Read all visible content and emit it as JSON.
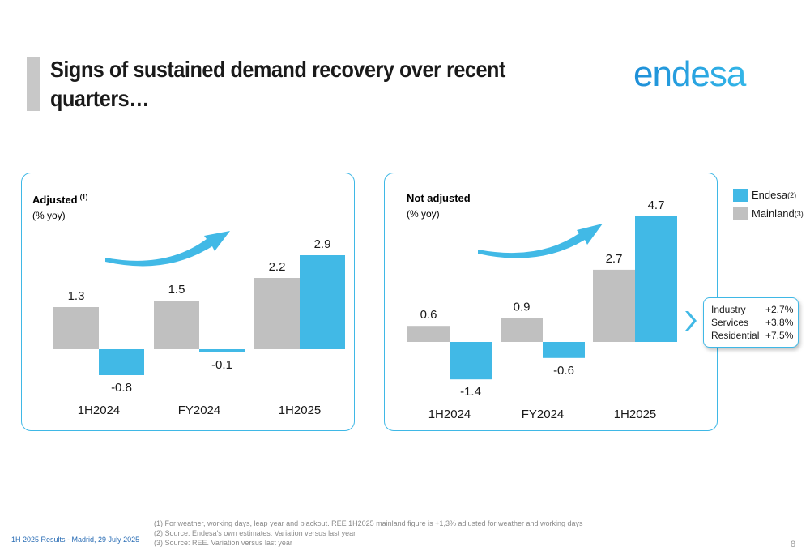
{
  "header": {
    "title_line1": "Signs of sustained demand recovery over recent",
    "title_line2": "quarters…",
    "logo_text": "endesa"
  },
  "colors": {
    "endesa": "#41b9e6",
    "mainland": "#c0c0c0",
    "accent_border": "#3fb8e6"
  },
  "legend": [
    {
      "label": "Endesa",
      "sup": "(2)",
      "color": "#41b9e6"
    },
    {
      "label": "Mainland",
      "sup": "(3)",
      "color": "#c0c0c0"
    }
  ],
  "chart_data": [
    {
      "type": "bar",
      "title": "Adjusted",
      "title_sup": "(1)",
      "subtitle": "(% yoy)",
      "categories": [
        "1H2024",
        "FY2024",
        "1H2025"
      ],
      "series": [
        {
          "name": "Mainland",
          "values": [
            1.3,
            1.5,
            2.2
          ]
        },
        {
          "name": "Endesa",
          "values": [
            -0.8,
            -0.1,
            2.9
          ]
        }
      ],
      "grid": false
    },
    {
      "type": "bar",
      "title": "Not adjusted",
      "subtitle": "(% yoy)",
      "categories": [
        "1H2024",
        "FY2024",
        "1H2025"
      ],
      "series": [
        {
          "name": "Mainland",
          "values": [
            0.6,
            0.9,
            2.7
          ]
        },
        {
          "name": "Endesa",
          "values": [
            -1.4,
            -0.6,
            4.7
          ]
        }
      ],
      "grid": false
    }
  ],
  "breakdown": [
    {
      "label": "Industry",
      "value": "+2.7%"
    },
    {
      "label": "Services",
      "value": "+3.8%"
    },
    {
      "label": "Residential",
      "value": "+7.5%"
    }
  ],
  "notes": [
    "(1)  For weather, working days, leap year and blackout. REE 1H2025 mainland figure is +1,3% adjusted for weather and working days",
    "(2)  Source: Endesa's own estimates. Variation versus last year",
    "(3)  Source: REE. Variation versus last year"
  ],
  "footer": {
    "left": "1H 2025 Results - Madrid, 29 July 2025",
    "page": "8"
  }
}
